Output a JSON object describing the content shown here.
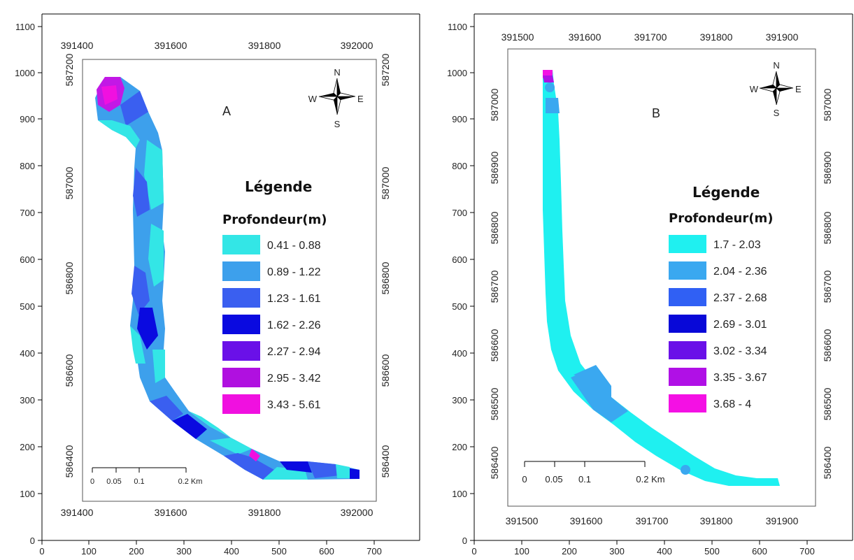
{
  "panels": [
    {
      "label": "A",
      "outer_y_ticks": [
        "1100",
        "1000",
        "900",
        "800",
        "700",
        "600",
        "500",
        "400",
        "300",
        "200",
        "100",
        "0"
      ],
      "outer_x_ticks": [
        "0",
        "100",
        "200",
        "300",
        "400",
        "500",
        "600",
        "700"
      ],
      "top_ticks": [
        "391400",
        "391600",
        "391800",
        "392000"
      ],
      "bottom_ticks": [
        "391400",
        "391600",
        "391800",
        "392000"
      ],
      "side_ticks": [
        "587200",
        "587000",
        "586800",
        "586600",
        "586400"
      ],
      "legend": {
        "title": "Légende",
        "subtitle": "Profondeur(m)",
        "items": [
          {
            "label": "0.41 - 0.88",
            "color": "#33e6e6"
          },
          {
            "label": "0.89 - 1.22",
            "color": "#3da0ec"
          },
          {
            "label": "1.23 - 1.61",
            "color": "#3a5ff0"
          },
          {
            "label": "1.62 - 2.26",
            "color": "#0a0ae0"
          },
          {
            "label": "2.27 - 2.94",
            "color": "#6a10e8"
          },
          {
            "label": "2.95 - 3.42",
            "color": "#b010e0"
          },
          {
            "label": "3.43 - 5.61",
            "color": "#f010e0"
          }
        ]
      },
      "compass": {
        "n": "N",
        "s": "S",
        "e": "E",
        "w": "W"
      },
      "scale": {
        "labels": [
          "0",
          "0.05",
          "0.1",
          "0.2 Km"
        ]
      }
    },
    {
      "label": "B",
      "outer_y_ticks": [
        "1100",
        "1000",
        "900",
        "800",
        "700",
        "600",
        "500",
        "400",
        "300",
        "200",
        "100",
        "0"
      ],
      "outer_x_ticks": [
        "0",
        "100",
        "200",
        "300",
        "400",
        "500",
        "600",
        "700"
      ],
      "top_ticks": [
        "391500",
        "391600",
        "391700",
        "391800",
        "391900"
      ],
      "bottom_ticks": [
        "391500",
        "391600",
        "391700",
        "391800",
        "391900"
      ],
      "side_ticks": [
        "587000",
        "586900",
        "586800",
        "586700",
        "586600",
        "586500",
        "586400"
      ],
      "legend": {
        "title": "Légende",
        "subtitle": "Profondeur(m)",
        "items": [
          {
            "label": "1.7 - 2.03",
            "color": "#1ff0f0"
          },
          {
            "label": "2.04 - 2.36",
            "color": "#3aa8f0"
          },
          {
            "label": "2.37 - 2.68",
            "color": "#3060f4"
          },
          {
            "label": "2.69 - 3.01",
            "color": "#0808d8"
          },
          {
            "label": "3.02 - 3.34",
            "color": "#6a10e8"
          },
          {
            "label": "3.35 - 3.67",
            "color": "#b010e6"
          },
          {
            "label": "3.68 - 4",
            "color": "#f410e4"
          }
        ]
      },
      "compass": {
        "n": "N",
        "s": "S",
        "e": "E",
        "w": "W"
      },
      "scale": {
        "labels": [
          "0",
          "0.05",
          "0.1",
          "0.2 Km"
        ]
      }
    }
  ]
}
